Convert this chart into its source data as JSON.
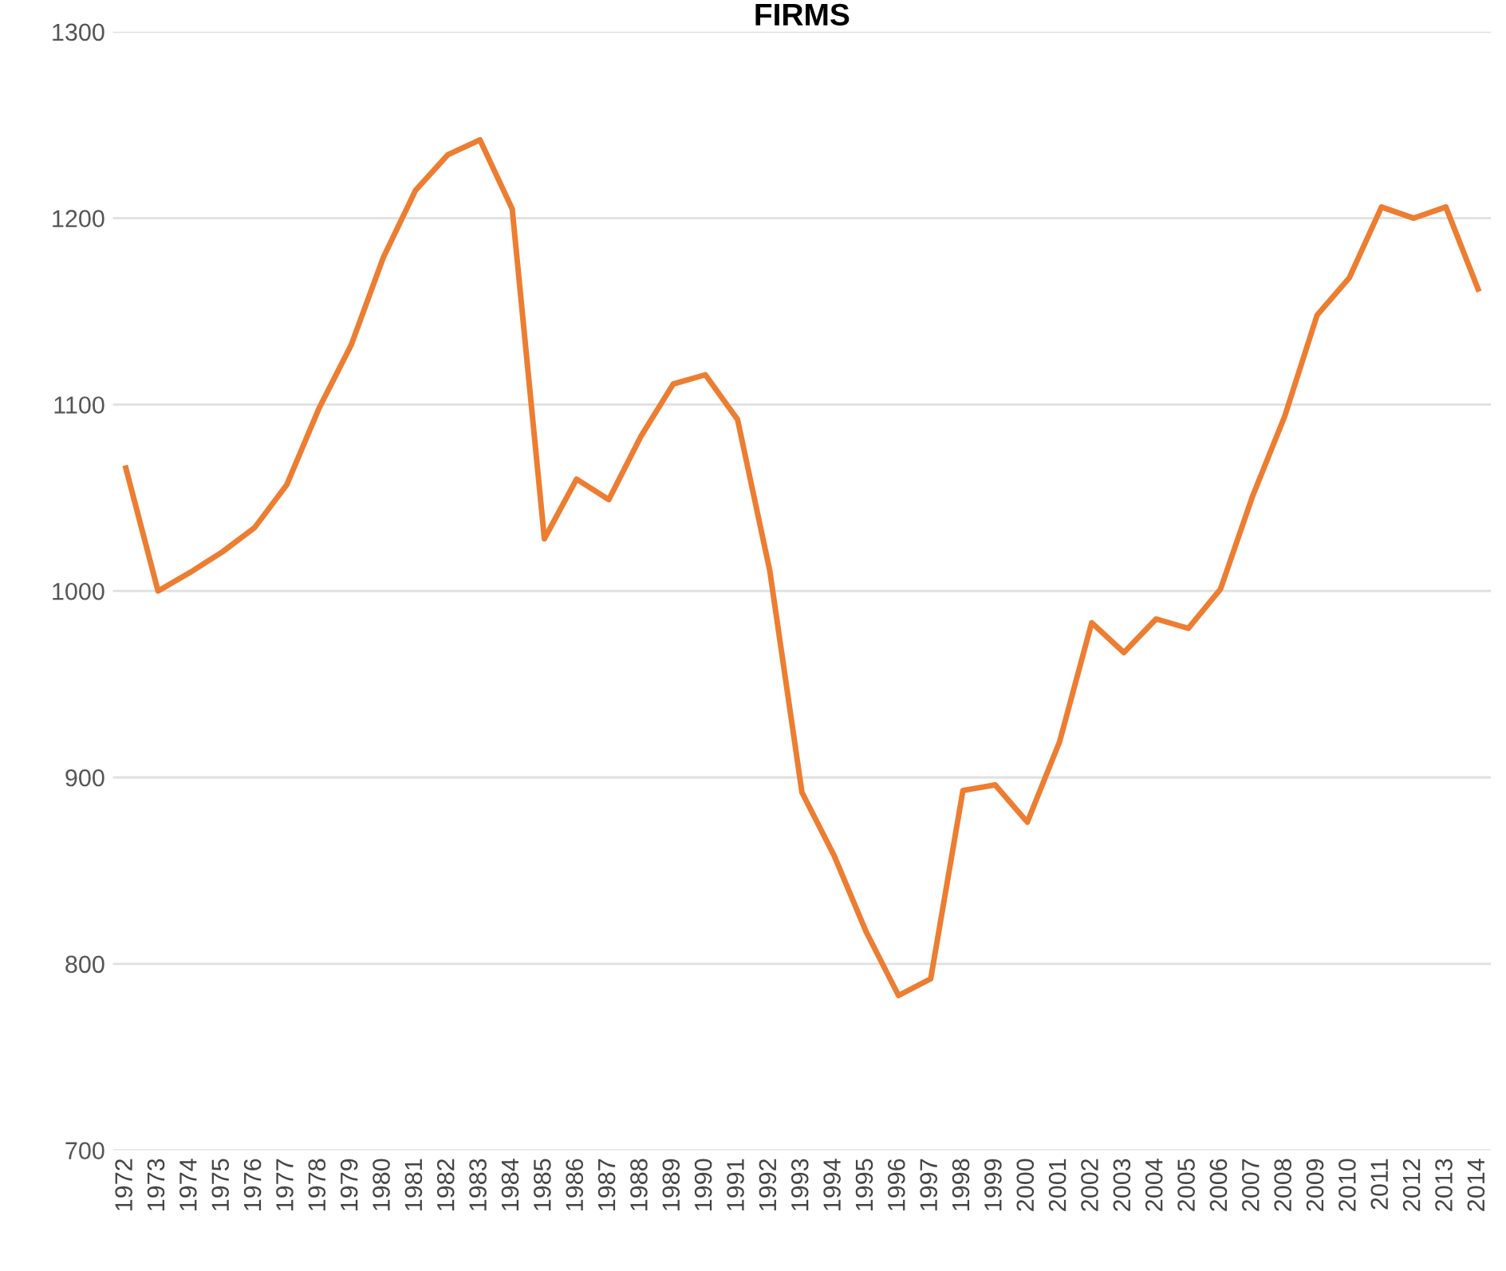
{
  "chart_data": {
    "type": "line",
    "title": "FIRMS",
    "categories": [
      "1972",
      "1973",
      "1974",
      "1975",
      "1976",
      "1977",
      "1978",
      "1979",
      "1980",
      "1981",
      "1982",
      "1983",
      "1984",
      "1985",
      "1986",
      "1987",
      "1988",
      "1989",
      "1990",
      "1991",
      "1992",
      "1993",
      "1994",
      "1995",
      "1996",
      "1997",
      "1998",
      "1999",
      "2000",
      "2001",
      "2002",
      "2003",
      "2004",
      "2005",
      "2006",
      "2007",
      "2008",
      "2009",
      "2010",
      "2011",
      "2012",
      "2013",
      "2014"
    ],
    "series": [
      {
        "color": "#ed7d31",
        "values": [
          1066,
          1000,
          1010,
          1021,
          1034,
          1057,
          1098,
          1132,
          1179,
          1215,
          1234,
          1242,
          1205,
          1028,
          1060,
          1049,
          1083,
          1111,
          1116,
          1092,
          1011,
          892,
          858,
          817,
          783,
          792,
          893,
          896,
          876,
          919,
          983,
          967,
          985,
          980,
          1001,
          1051,
          1094,
          1148,
          1168,
          1206,
          1200,
          1206,
          1162
        ]
      }
    ],
    "ylim": [
      700,
      1300
    ],
    "yticks": [
      700,
      800,
      900,
      1000,
      1100,
      1200,
      1300
    ],
    "grid": "y",
    "legend": false,
    "marker": "none",
    "line_style": "solid"
  }
}
